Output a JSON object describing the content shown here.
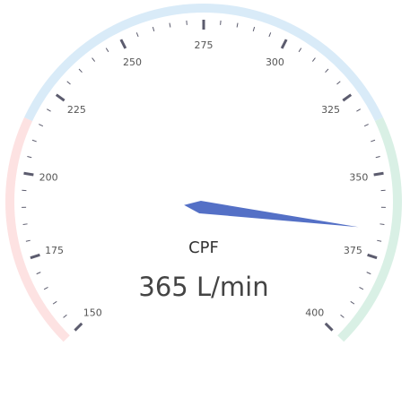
{
  "chart_data": {
    "type": "gauge",
    "title": "CPF",
    "value": 365,
    "unit": "L/min",
    "detail": "365 L/min",
    "min": 150,
    "max": 400,
    "major_ticks": [
      150,
      175,
      200,
      225,
      250,
      275,
      300,
      325,
      350,
      375,
      400
    ],
    "tick_labels": [
      "150",
      "175",
      "200",
      "225",
      "250",
      "275",
      "300",
      "325",
      "350",
      "375",
      "400"
    ],
    "minor_per_major": 5,
    "bands": [
      {
        "from": 150,
        "to": 215,
        "color": "#fde2e2"
      },
      {
        "from": 215,
        "to": 335,
        "color": "#d9ebf8"
      },
      {
        "from": 335,
        "to": 400,
        "color": "#d9f0e5"
      }
    ],
    "pointer_color": "#5470c6",
    "tick_color": "#5c5c6e"
  }
}
